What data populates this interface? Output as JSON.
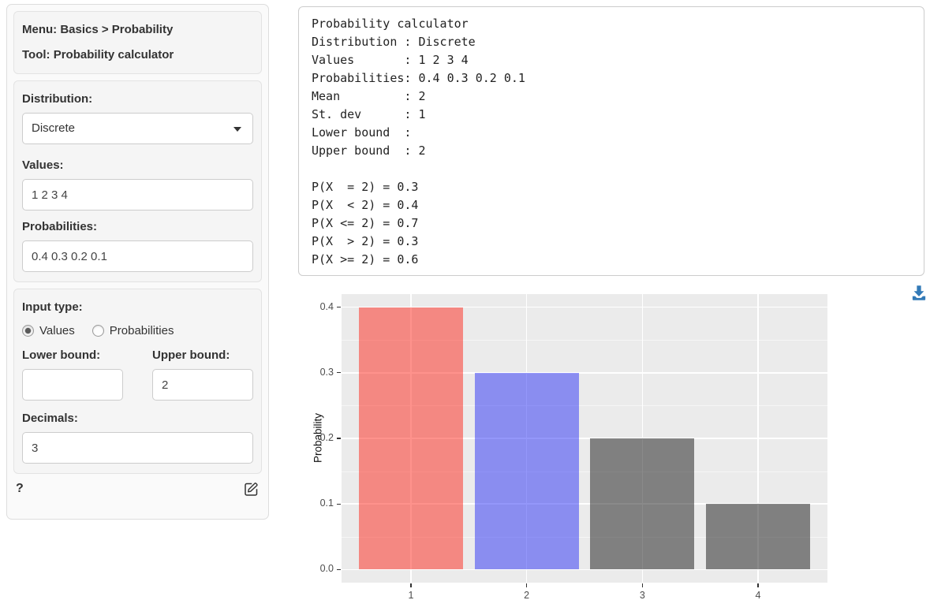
{
  "sidebar": {
    "menu_label": "Menu: Basics > Probability",
    "tool_label": "Tool: Probability calculator",
    "distribution": {
      "label": "Distribution:",
      "value": "Discrete"
    },
    "values": {
      "label": "Values:",
      "value": "1 2 3 4"
    },
    "probabilities": {
      "label": "Probabilities:",
      "value": "0.4 0.3 0.2 0.1"
    },
    "input_type": {
      "label": "Input type:",
      "options": [
        "Values",
        "Probabilities"
      ],
      "selected": "Values"
    },
    "lower_bound": {
      "label": "Lower bound:",
      "value": ""
    },
    "upper_bound": {
      "label": "Upper bound:",
      "value": "2"
    },
    "decimals": {
      "label": "Decimals:",
      "value": "3"
    },
    "help_label": "?"
  },
  "output": {
    "text": "Probability calculator\nDistribution : Discrete\nValues       : 1 2 3 4\nProbabilities: 0.4 0.3 0.2 0.1\nMean         : 2\nSt. dev      : 1\nLower bound  :\nUpper bound  : 2\n\nP(X  = 2) = 0.3\nP(X  < 2) = 0.4\nP(X <= 2) = 0.7\nP(X  > 2) = 0.3\nP(X >= 2) = 0.6"
  },
  "icons": {
    "download_color": "#337ab7",
    "edit_color": "#333333"
  },
  "chart_data": {
    "type": "bar",
    "title": "",
    "xlabel": "",
    "ylabel": "Probability",
    "categories": [
      "1",
      "2",
      "3",
      "4"
    ],
    "values": [
      0.4,
      0.3,
      0.2,
      0.1
    ],
    "fill_colors": [
      "rgba(253,37,25,0.5)",
      "rgba(41,47,245,0.5)",
      "rgba(21,21,21,0.5)",
      "rgba(21,21,21,0.5)"
    ],
    "ylim": [
      -0.02,
      0.42
    ],
    "yticks": [
      0.0,
      0.1,
      0.2,
      0.3,
      0.4
    ],
    "ytick_labels": [
      "0.0",
      "0.1",
      "0.2",
      "0.3",
      "0.4"
    ],
    "minor_yticks": [
      0.05,
      0.15,
      0.25,
      0.35
    ],
    "panel_bg": "#ebebeb",
    "grid": "on",
    "legend": "none"
  }
}
